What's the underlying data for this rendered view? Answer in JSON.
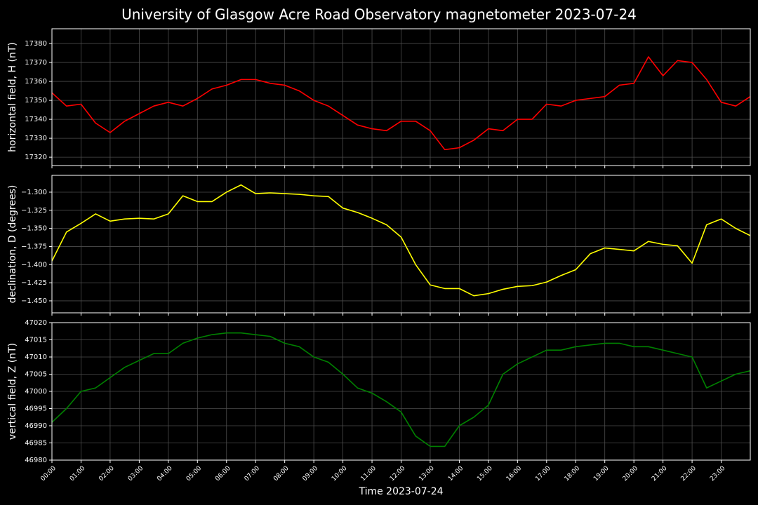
{
  "title": "University of Glasgow Acre Road Observatory magnetometer 2023-07-24",
  "chart_data": [
    {
      "type": "line",
      "ylabel": "horizontal field, H (nT)",
      "grid": true,
      "xlim": [
        0,
        24
      ],
      "ylim": [
        17315.6,
        17387.8
      ],
      "yticks": [
        17320,
        17330,
        17340,
        17350,
        17360,
        17370,
        17380
      ],
      "x": [
        0,
        0.5,
        1,
        1.5,
        2,
        2.5,
        3,
        3.5,
        4,
        4.5,
        5,
        5.5,
        6,
        6.5,
        7,
        7.5,
        8,
        8.5,
        9,
        9.5,
        10,
        10.5,
        11,
        11.5,
        12,
        12.5,
        13,
        13.5,
        14,
        14.5,
        15,
        15.5,
        16,
        16.5,
        17,
        17.5,
        18,
        18.5,
        19,
        19.5,
        20,
        20.5,
        21,
        21.5,
        22,
        22.5,
        23,
        23.5,
        24
      ],
      "series": [
        {
          "name": "H",
          "color": "#ff0000",
          "values": [
            17354,
            17347,
            17348,
            17338,
            17333,
            17339,
            17343,
            17347,
            17349,
            17347,
            17351,
            17356,
            17358,
            17361,
            17361,
            17359,
            17358,
            17355,
            17350,
            17347,
            17342,
            17337,
            17335,
            17334,
            17339,
            17339,
            17334,
            17324,
            17325,
            17329,
            17335,
            17334,
            17340,
            17340,
            17348,
            17347,
            17350,
            17351,
            17352,
            17358,
            17359,
            17373,
            17363,
            17371,
            17370,
            17361,
            17349,
            17347,
            17352
          ]
        }
      ]
    },
    {
      "type": "line",
      "ylabel": "declination, D (degrees)",
      "grid": true,
      "xlim": [
        0,
        24
      ],
      "ylim": [
        -1.4665,
        -1.2768
      ],
      "yticks": [
        {
          "value": -1.3,
          "label": "−1.300"
        },
        {
          "value": -1.325,
          "label": "−1.325"
        },
        {
          "value": -1.35,
          "label": "−1.350"
        },
        {
          "value": -1.375,
          "label": "−1.375"
        },
        {
          "value": -1.4,
          "label": "−1.400"
        },
        {
          "value": -1.425,
          "label": "−1.425"
        },
        {
          "value": -1.45,
          "label": "−1.450"
        }
      ],
      "x": [
        0,
        0.5,
        1,
        1.5,
        2,
        2.5,
        3,
        3.5,
        4,
        4.5,
        5,
        5.5,
        6,
        6.5,
        7,
        7.5,
        8,
        8.5,
        9,
        9.5,
        10,
        10.5,
        11,
        11.5,
        12,
        12.5,
        13,
        13.5,
        14,
        14.5,
        15,
        15.5,
        16,
        16.5,
        17,
        17.5,
        18,
        18.5,
        19,
        19.5,
        20,
        20.5,
        21,
        21.5,
        22,
        22.5,
        23,
        23.5,
        24
      ],
      "series": [
        {
          "name": "D",
          "color": "#ffff00",
          "values": [
            -1.395,
            -1.355,
            -1.343,
            -1.33,
            -1.34,
            -1.337,
            -1.336,
            -1.337,
            -1.33,
            -1.305,
            -1.313,
            -1.313,
            -1.3,
            -1.29,
            -1.302,
            -1.301,
            -1.302,
            -1.303,
            -1.305,
            -1.306,
            -1.322,
            -1.328,
            -1.336,
            -1.345,
            -1.362,
            -1.4,
            -1.428,
            -1.433,
            -1.433,
            -1.443,
            -1.44,
            -1.434,
            -1.43,
            -1.429,
            -1.424,
            -1.415,
            -1.407,
            -1.385,
            -1.377,
            -1.379,
            -1.381,
            -1.368,
            -1.372,
            -1.374,
            -1.398,
            -1.345,
            -1.337,
            -1.35,
            -1.36
          ]
        }
      ]
    },
    {
      "type": "line",
      "ylabel": "vertical field, Z (nT)",
      "xlabel": "Time 2023-07-24",
      "grid": true,
      "xlim": [
        0,
        24
      ],
      "ylim": [
        46980,
        47020
      ],
      "yticks": [
        46980,
        46985,
        46990,
        46995,
        47000,
        47005,
        47010,
        47015,
        47020
      ],
      "xticks": [
        {
          "value": 0,
          "label": "00:00"
        },
        {
          "value": 1,
          "label": "01:00"
        },
        {
          "value": 2,
          "label": "02:00"
        },
        {
          "value": 3,
          "label": "03:00"
        },
        {
          "value": 4,
          "label": "04:00"
        },
        {
          "value": 5,
          "label": "05:00"
        },
        {
          "value": 6,
          "label": "06:00"
        },
        {
          "value": 7,
          "label": "07:00"
        },
        {
          "value": 8,
          "label": "08:00"
        },
        {
          "value": 9,
          "label": "09:00"
        },
        {
          "value": 10,
          "label": "10:00"
        },
        {
          "value": 11,
          "label": "11:00"
        },
        {
          "value": 12,
          "label": "12:00"
        },
        {
          "value": 13,
          "label": "13:00"
        },
        {
          "value": 14,
          "label": "14:00"
        },
        {
          "value": 15,
          "label": "15:00"
        },
        {
          "value": 16,
          "label": "16:00"
        },
        {
          "value": 17,
          "label": "17:00"
        },
        {
          "value": 18,
          "label": "18:00"
        },
        {
          "value": 19,
          "label": "19:00"
        },
        {
          "value": 20,
          "label": "20:00"
        },
        {
          "value": 21,
          "label": "21:00"
        },
        {
          "value": 22,
          "label": "22:00"
        },
        {
          "value": 23,
          "label": "23:00"
        }
      ],
      "x": [
        0,
        0.5,
        1,
        1.5,
        2,
        2.5,
        3,
        3.5,
        4,
        4.5,
        5,
        5.5,
        6,
        6.5,
        7,
        7.5,
        8,
        8.5,
        9,
        9.5,
        10,
        10.5,
        11,
        11.5,
        12,
        12.5,
        13,
        13.5,
        14,
        14.5,
        15,
        15.5,
        16,
        16.5,
        17,
        17.5,
        18,
        18.5,
        19,
        19.5,
        20,
        20.5,
        21,
        21.5,
        22,
        22.5,
        23,
        23.5,
        24
      ],
      "series": [
        {
          "name": "Z",
          "color": "#008000",
          "values": [
            46991,
            46995,
            47000,
            47001,
            47004,
            47007,
            47009,
            47011,
            47011,
            47014,
            47015.5,
            47016.5,
            47017,
            47017,
            47016.5,
            47016,
            47014,
            47013,
            47010,
            47008.5,
            47005,
            47001,
            46999.5,
            46997,
            46994,
            46987,
            46984,
            46984,
            46990,
            46992.5,
            46996,
            47005,
            47008,
            47010,
            47012,
            47012,
            47013,
            47013.5,
            47014,
            47014,
            47013,
            47013,
            47012,
            47011,
            47010,
            47001,
            47003,
            47005,
            47006
          ]
        }
      ]
    }
  ]
}
